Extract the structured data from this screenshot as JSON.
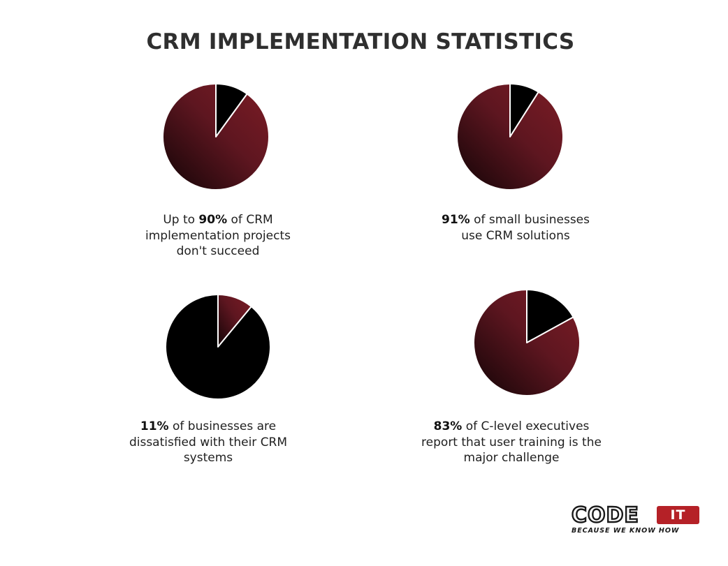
{
  "title": "CRM IMPLEMENTATION STATISTICS",
  "colors": {
    "accent_red": "#7c1c25",
    "dark_red": "#3a0e12",
    "black": "#000000",
    "logo_red": "#b52127"
  },
  "chart_data": [
    {
      "type": "pie",
      "slices": [
        {
          "label": "red",
          "value": 90,
          "color": "accent_red"
        },
        {
          "label": "black",
          "value": 10,
          "color": "black"
        }
      ],
      "caption": {
        "prefix": "Up to ",
        "bold": "90%",
        "lines": [
          " of CRM",
          "implementation projects",
          "don't succeed"
        ]
      }
    },
    {
      "type": "pie",
      "slices": [
        {
          "label": "red",
          "value": 91,
          "color": "accent_red"
        },
        {
          "label": "black",
          "value": 9,
          "color": "black"
        }
      ],
      "caption": {
        "prefix": "",
        "bold": "91%",
        "lines": [
          " of small businesses",
          "use CRM solutions"
        ]
      }
    },
    {
      "type": "pie",
      "slices": [
        {
          "label": "red",
          "value": 11,
          "color": "accent_red"
        },
        {
          "label": "black",
          "value": 89,
          "color": "black"
        }
      ],
      "caption": {
        "prefix": "",
        "bold": "11%",
        "lines": [
          " of businesses are",
          "dissatisfied with their CRM",
          "systems"
        ]
      }
    },
    {
      "type": "pie",
      "slices": [
        {
          "label": "red",
          "value": 83,
          "color": "accent_red"
        },
        {
          "label": "black",
          "value": 17,
          "color": "black"
        }
      ],
      "caption": {
        "prefix": "",
        "bold": "83%",
        "lines": [
          " of C-level executives",
          "report that user training is the",
          "major challenge"
        ]
      }
    }
  ],
  "logo": {
    "word": "CODE",
    "box": "IT",
    "tagline": "BECAUSE WE KNOW HOW"
  }
}
